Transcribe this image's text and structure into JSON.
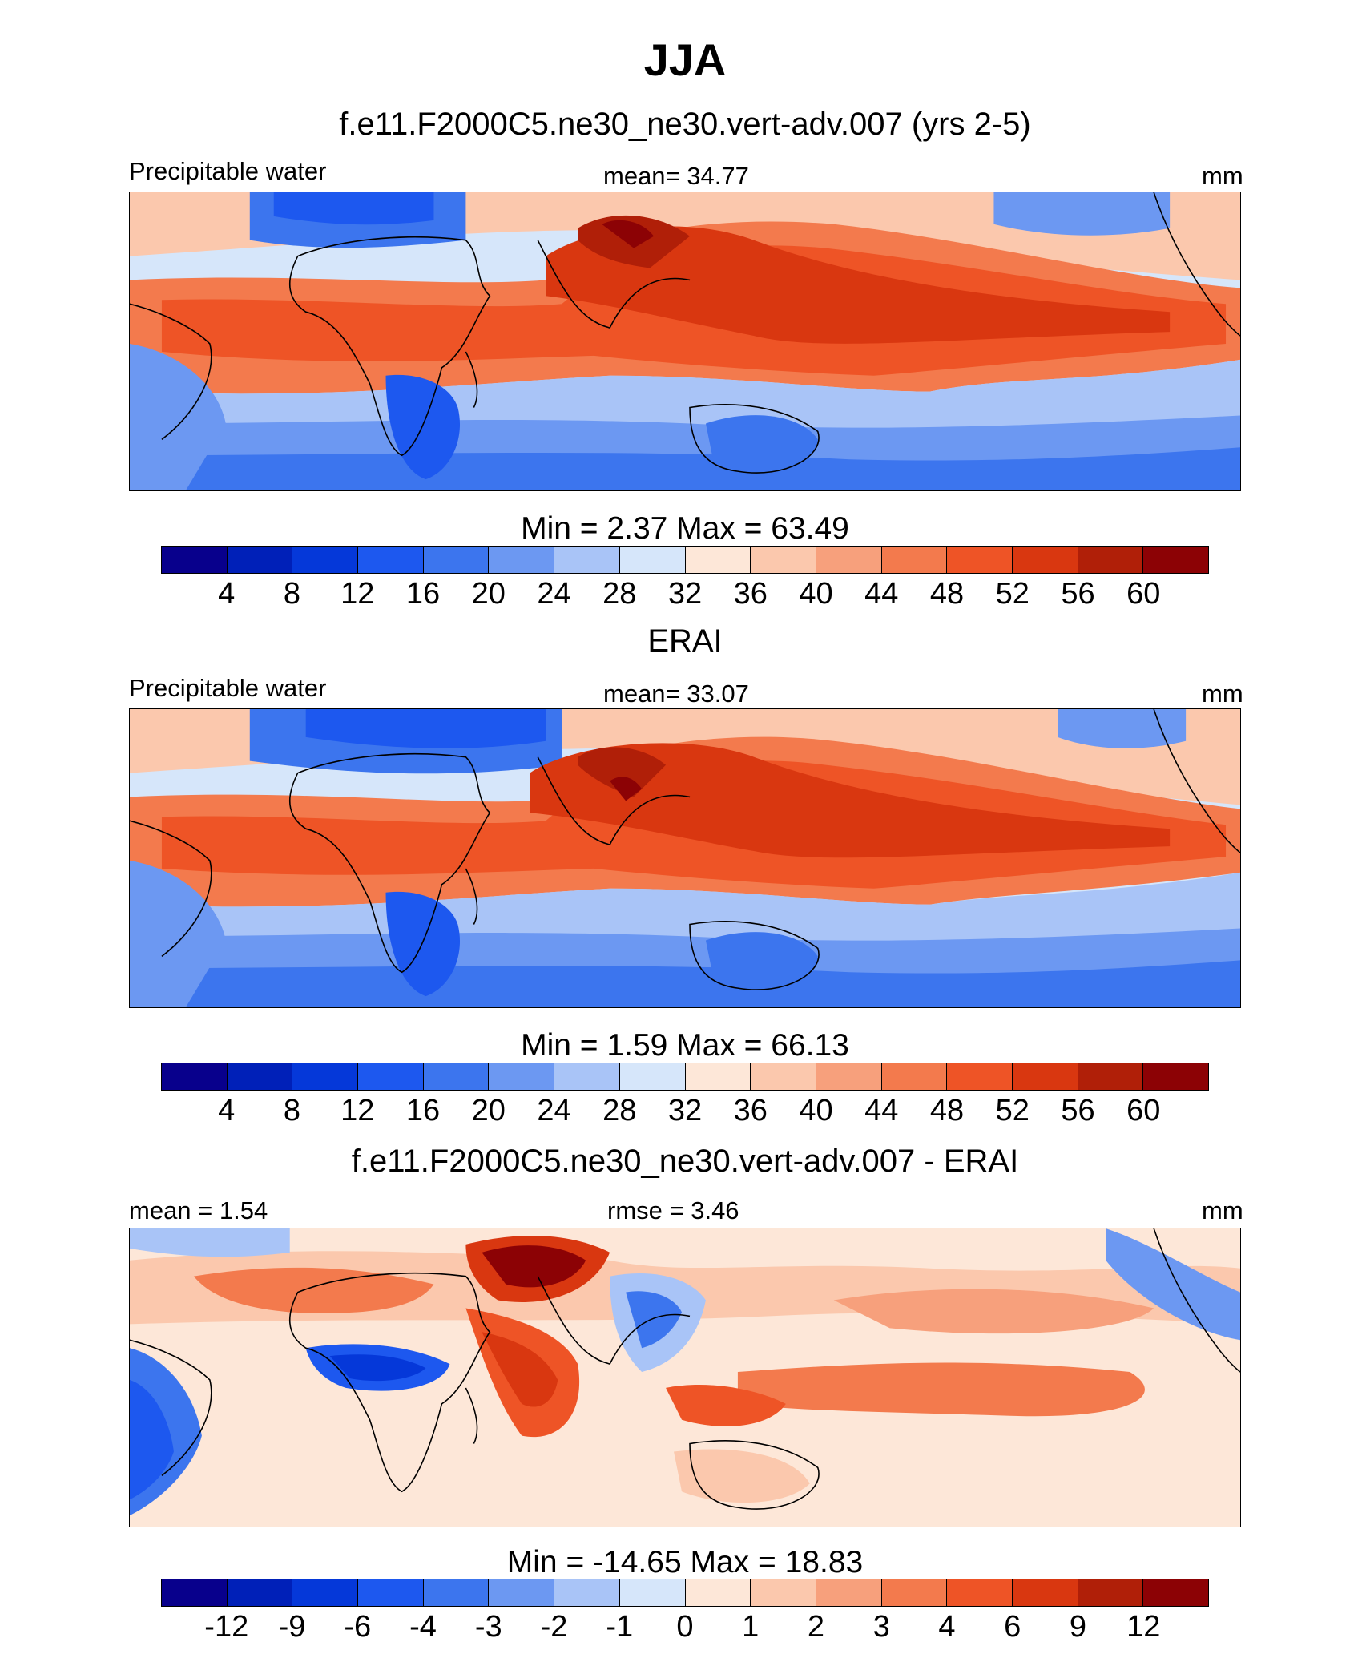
{
  "title": "JJA",
  "palette": [
    "#08008c",
    "#0020b8",
    "#0538d9",
    "#1d58ef",
    "#3c75ee",
    "#6c98f2",
    "#a9c4f7",
    "#d6e6fa",
    "#fde7d8",
    "#fbc8ad",
    "#f7a07c",
    "#f37a4d",
    "#ee5426",
    "#d93710",
    "#b01f08",
    "#8c0205"
  ],
  "panels": [
    {
      "title": "f.e11.F2000C5.ne30_ne30.vert-adv.007 (yrs 2-5)",
      "left_label": "Precipitable water",
      "center_label": "mean=  34.77",
      "right_label": "mm",
      "minmax": "Min =    2.37 Max =  63.49",
      "ticks": [
        "4",
        "8",
        "12",
        "16",
        "20",
        "24",
        "28",
        "32",
        "36",
        "40",
        "44",
        "48",
        "52",
        "56",
        "60"
      ]
    },
    {
      "title": "ERAI",
      "left_label": "Precipitable water",
      "center_label": "mean=  33.07",
      "right_label": "mm",
      "minmax": "Min =    1.59 Max =  66.13",
      "ticks": [
        "4",
        "8",
        "12",
        "16",
        "20",
        "24",
        "28",
        "32",
        "36",
        "40",
        "44",
        "48",
        "52",
        "56",
        "60"
      ]
    },
    {
      "title": "f.e11.F2000C5.ne30_ne30.vert-adv.007 - ERAI",
      "left_label": "mean =   1.54",
      "center_label": "rmse =   3.46",
      "right_label": "mm",
      "minmax": "Min = -14.65 Max =  18.83",
      "ticks": [
        "-12",
        "-9",
        "-6",
        "-4",
        "-3",
        "-2",
        "-1",
        "0",
        "1",
        "2",
        "3",
        "4",
        "6",
        "9",
        "12"
      ]
    }
  ]
}
